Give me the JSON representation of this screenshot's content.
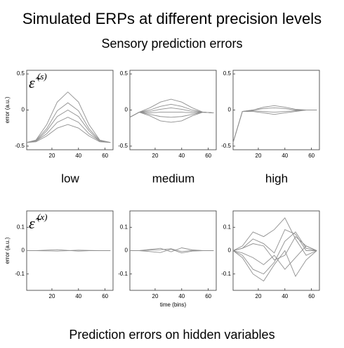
{
  "title": "Simulated ERPs at different precision levels",
  "top_title": "Sensory prediction errors",
  "bottom_title": "Prediction errors on hidden variables",
  "column_labels": [
    "low",
    "medium",
    "high"
  ],
  "chart_data": [
    {
      "type": "line",
      "color": "#8f8f8f",
      "ylabel": "error (a.u.)",
      "symbol": "ε̃",
      "superscript": "(s)",
      "x": [
        1,
        8,
        16,
        24,
        32,
        40,
        48,
        56,
        64
      ],
      "xlim": [
        1,
        66
      ],
      "xticks": [
        20,
        40,
        60
      ],
      "ylim": [
        -0.55,
        0.55
      ],
      "yticks": [
        -0.5,
        0,
        0.5
      ],
      "series": [
        {
          "values": [
            -0.45,
            -0.415,
            -0.205,
            0.11,
            0.25,
            0.11,
            -0.205,
            -0.415,
            -0.45
          ]
        },
        {
          "values": [
            -0.45,
            -0.42,
            -0.26,
            -0.01,
            0.1,
            -0.01,
            -0.26,
            -0.42,
            -0.45
          ]
        },
        {
          "values": [
            -0.45,
            -0.43,
            -0.29,
            -0.09,
            0.0,
            -0.09,
            -0.29,
            -0.43,
            -0.45
          ]
        },
        {
          "values": [
            -0.45,
            -0.43,
            -0.33,
            -0.17,
            -0.1,
            -0.17,
            -0.33,
            -0.43,
            -0.45
          ]
        },
        {
          "values": [
            -0.45,
            -0.44,
            -0.36,
            -0.25,
            -0.2,
            -0.25,
            -0.36,
            -0.44,
            -0.45
          ]
        }
      ]
    },
    {
      "type": "line",
      "color": "#8f8f8f",
      "x": [
        1,
        8,
        16,
        24,
        32,
        40,
        48,
        56,
        64
      ],
      "xlim": [
        1,
        66
      ],
      "xticks": [
        20,
        40,
        60
      ],
      "ylim": [
        -0.55,
        0.55
      ],
      "yticks": [
        -0.5,
        0,
        0.5
      ],
      "series": [
        {
          "values": [
            -0.1,
            -0.03,
            0.03,
            0.11,
            0.15,
            0.11,
            0.03,
            -0.03,
            -0.04
          ]
        },
        {
          "values": [
            -0.1,
            -0.03,
            0.0,
            0.05,
            0.08,
            0.05,
            0.0,
            -0.03,
            -0.04
          ]
        },
        {
          "values": [
            -0.1,
            -0.03,
            -0.02,
            0.01,
            0.03,
            0.01,
            -0.02,
            -0.03,
            -0.04
          ]
        },
        {
          "values": [
            -0.1,
            -0.03,
            -0.04,
            -0.03,
            -0.03,
            -0.03,
            -0.04,
            -0.03,
            -0.04
          ]
        },
        {
          "values": [
            -0.1,
            -0.03,
            -0.06,
            -0.09,
            -0.1,
            -0.09,
            -0.06,
            -0.03,
            -0.04
          ]
        },
        {
          "values": [
            -0.1,
            -0.03,
            -0.08,
            -0.15,
            -0.17,
            -0.15,
            -0.08,
            -0.03,
            -0.04
          ]
        }
      ]
    },
    {
      "type": "line",
      "color": "#8f8f8f",
      "x": [
        1,
        8,
        16,
        24,
        32,
        40,
        48,
        56,
        64
      ],
      "xlim": [
        1,
        66
      ],
      "xticks": [
        20,
        40,
        60
      ],
      "ylim": [
        -0.55,
        0.55
      ],
      "yticks": [
        -0.5,
        0,
        0.5
      ],
      "series": [
        {
          "values": [
            -0.45,
            -0.02,
            0.0,
            0.04,
            0.06,
            0.04,
            0.01,
            0.0,
            0.0
          ]
        },
        {
          "values": [
            -0.45,
            -0.02,
            0.0,
            0.02,
            0.03,
            0.02,
            0.0,
            0.0,
            0.0
          ]
        },
        {
          "values": [
            -0.45,
            -0.02,
            -0.01,
            -0.02,
            -0.03,
            -0.02,
            -0.01,
            0.0,
            0.0
          ]
        },
        {
          "values": [
            -0.45,
            -0.02,
            -0.02,
            -0.04,
            -0.06,
            -0.04,
            -0.02,
            0.0,
            0.0
          ]
        }
      ]
    },
    {
      "type": "line",
      "color": "#8f8f8f",
      "ylabel": "error (a.u.)",
      "symbol": "ε̃",
      "superscript": "(x)",
      "x": [
        1,
        8,
        16,
        24,
        32,
        40,
        48,
        56,
        64
      ],
      "xlim": [
        1,
        66
      ],
      "xticks": [
        20,
        40,
        60
      ],
      "ylim": [
        -0.17,
        0.17
      ],
      "yticks": [
        -0.1,
        0,
        0.1
      ],
      "series": [
        {
          "values": [
            0,
            0,
            0.002,
            0.004,
            0.001,
            -0.002,
            0,
            0,
            0
          ]
        },
        {
          "values": [
            0,
            0,
            -0.001,
            -0.002,
            0.0,
            0.002,
            0.001,
            0,
            0
          ]
        }
      ]
    },
    {
      "type": "line",
      "color": "#8f8f8f",
      "xlabel": "time (bins)",
      "x": [
        1,
        8,
        16,
        24,
        32,
        40,
        48,
        56,
        64
      ],
      "xlim": [
        1,
        66
      ],
      "xticks": [
        20,
        40,
        60
      ],
      "ylim": [
        -0.17,
        0.17
      ],
      "yticks": [
        -0.1,
        0,
        0.1
      ],
      "series": [
        {
          "values": [
            0,
            0,
            0.005,
            0.01,
            -0.005,
            0.012,
            0.003,
            0,
            0
          ]
        },
        {
          "values": [
            0,
            0,
            -0.004,
            -0.008,
            0.006,
            -0.01,
            -0.002,
            0,
            0
          ]
        },
        {
          "values": [
            0,
            0,
            0.002,
            0.004,
            0.008,
            -0.004,
            0.001,
            0,
            0
          ]
        }
      ]
    },
    {
      "type": "line",
      "color": "#8f8f8f",
      "x": [
        1,
        8,
        16,
        24,
        32,
        40,
        48,
        56,
        64
      ],
      "xlim": [
        1,
        66
      ],
      "xticks": [
        20,
        40,
        60
      ],
      "ylim": [
        -0.17,
        0.17
      ],
      "yticks": [
        -0.1,
        0,
        0.1
      ],
      "series": [
        {
          "values": [
            0,
            0.02,
            0.08,
            0.06,
            0.09,
            0.14,
            0.05,
            -0.02,
            0
          ]
        },
        {
          "values": [
            0,
            0.01,
            0.03,
            0.02,
            -0.04,
            -0.02,
            0.06,
            0.02,
            0
          ]
        },
        {
          "values": [
            0,
            -0.02,
            -0.08,
            -0.1,
            -0.05,
            0.04,
            0.08,
            0.01,
            0
          ]
        },
        {
          "values": [
            0,
            -0.01,
            -0.03,
            -0.06,
            -0.02,
            -0.08,
            -0.03,
            0.02,
            0
          ]
        },
        {
          "values": [
            0,
            -0.03,
            -0.1,
            -0.13,
            -0.06,
            0.0,
            -0.11,
            -0.04,
            0
          ]
        },
        {
          "values": [
            0,
            0.01,
            0.05,
            0.03,
            -0.01,
            0.09,
            0.07,
            0.0,
            0
          ]
        }
      ]
    }
  ]
}
